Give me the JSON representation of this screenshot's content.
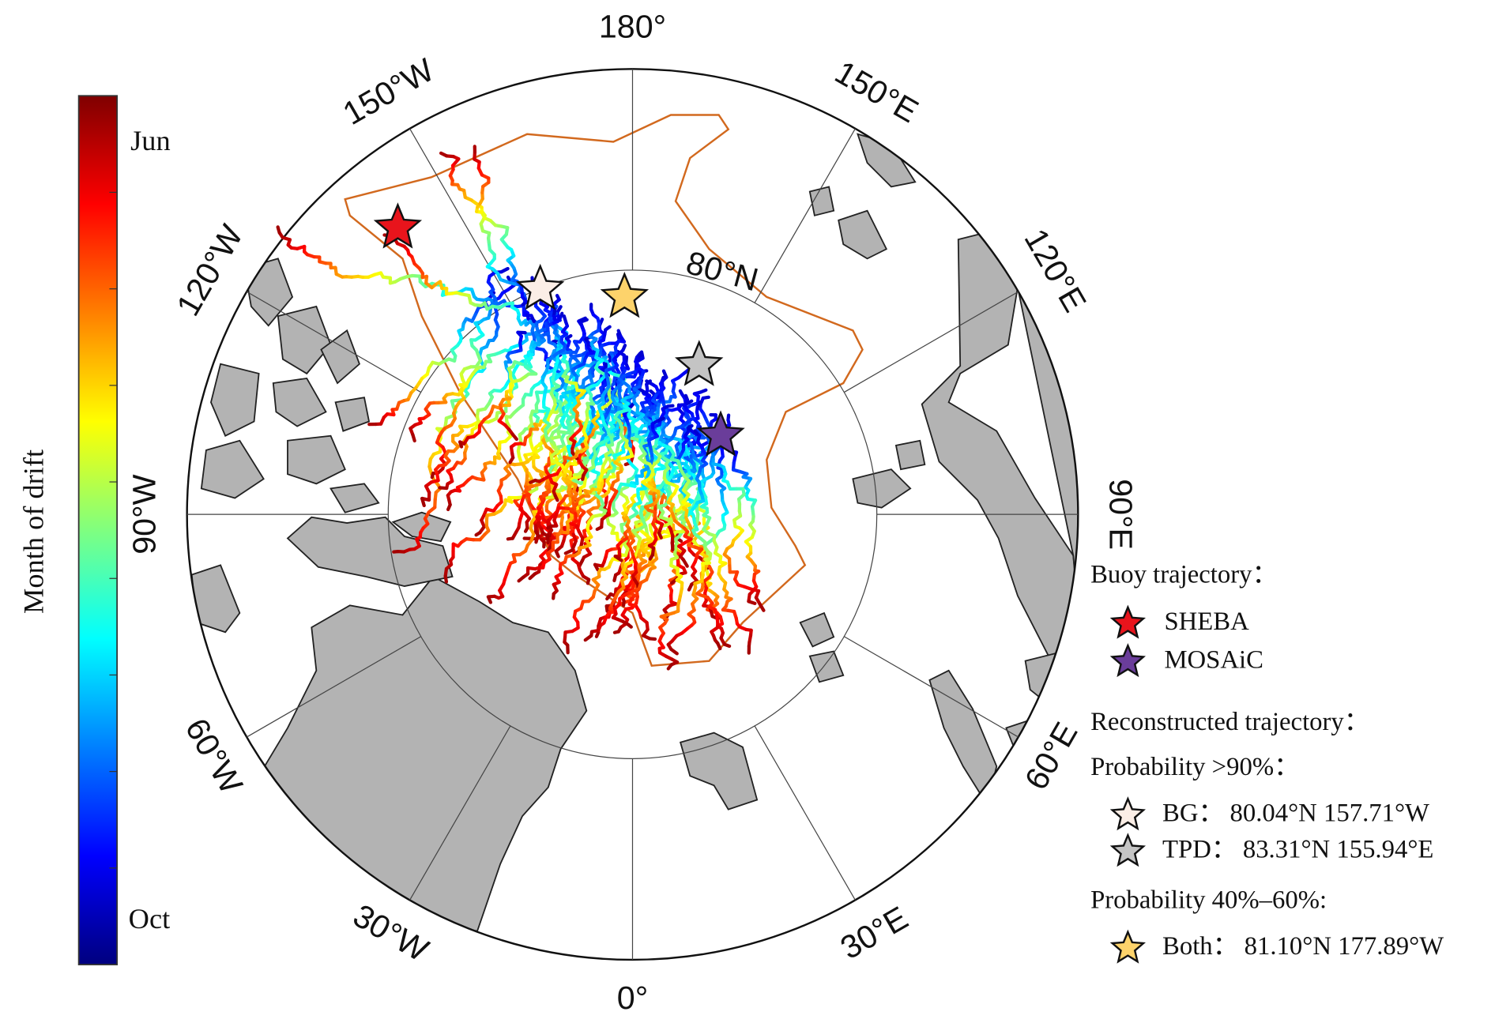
{
  "colorbar": {
    "label": "Month of drift",
    "top": "Jun",
    "bottom": "Oct"
  },
  "map": {
    "meridians": [
      {
        "value": 180,
        "label": "180°"
      },
      {
        "value": 150,
        "label": "150°E"
      },
      {
        "value": 120,
        "label": "120°E"
      },
      {
        "value": 90,
        "label": "90°E"
      },
      {
        "value": 60,
        "label": "60°E"
      },
      {
        "value": 30,
        "label": "30°E"
      },
      {
        "value": 0,
        "label": "0°"
      },
      {
        "value": -30,
        "label": "30°W"
      },
      {
        "value": -60,
        "label": "60°W"
      },
      {
        "value": -90,
        "label": "90°W"
      },
      {
        "value": -120,
        "label": "120°W"
      },
      {
        "value": -150,
        "label": "150°W"
      }
    ],
    "parallel": {
      "value": 80,
      "label": "80°N"
    }
  },
  "legend": {
    "buoy_heading": "Buoy trajectory：",
    "buoys": [
      {
        "name": "SHEBA",
        "color": "#e8141c"
      },
      {
        "name": "MOSAiC",
        "color": "#6a3d9a"
      }
    ],
    "reconstructed_heading": "Reconstructed trajectory：",
    "groups": [
      {
        "heading": "Probability >90%：",
        "items": [
          {
            "name": "BG：",
            "label": "80.04°N 157.71°W",
            "lat": 80.04,
            "lon": -157.71,
            "color": "#fbeee6"
          },
          {
            "name": "TPD：",
            "label": "83.31°N 155.94°E",
            "lat": 83.31,
            "lon": 155.94,
            "color": "#c4c4c4"
          }
        ]
      },
      {
        "heading": "Probability 40%–60%:",
        "items": [
          {
            "name": "Both：",
            "label": "81.10°N 177.89°W",
            "lat": 81.1,
            "lon": -177.89,
            "color": "#fdd36b"
          }
        ]
      }
    ]
  }
}
